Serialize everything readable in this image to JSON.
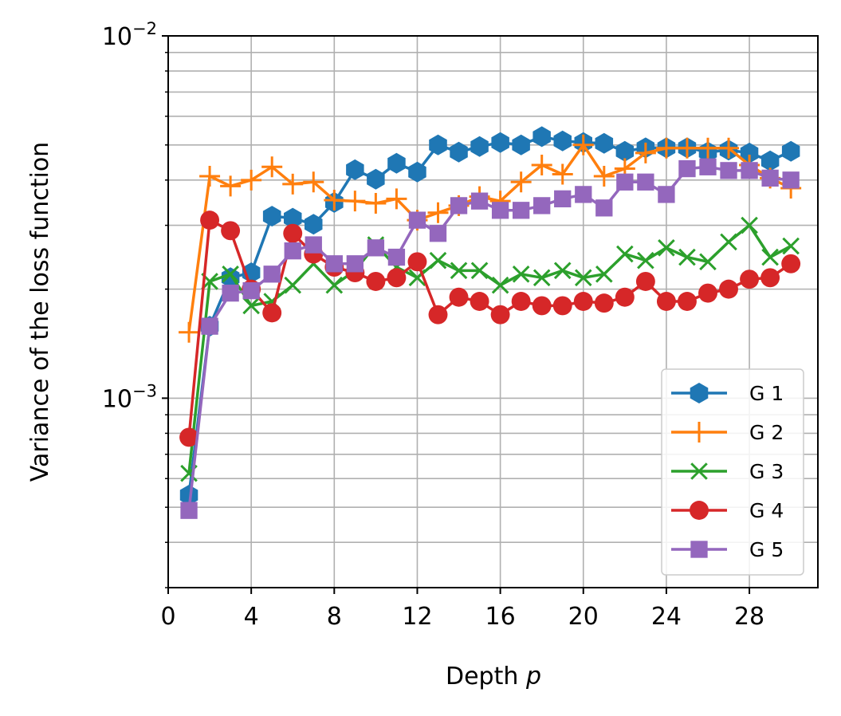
{
  "chart_data": {
    "type": "line",
    "title": "",
    "xlabel": "Depth",
    "xlabel_var": "p",
    "ylabel": "Variance of the loss function",
    "xlim": [
      0,
      31.3
    ],
    "ylim": [
      0.0003,
      0.01
    ],
    "yscale": "log",
    "grid": true,
    "legend_position": "lower-right",
    "x_ticks": [
      0,
      4,
      8,
      12,
      16,
      20,
      24,
      28
    ],
    "y_tick_labels": [
      {
        "value": 0.001,
        "base": "10",
        "exp": "−3"
      },
      {
        "value": 0.01,
        "base": "10",
        "exp": "−2"
      }
    ],
    "x": [
      1,
      2,
      3,
      4,
      5,
      6,
      7,
      8,
      9,
      10,
      11,
      12,
      13,
      14,
      15,
      16,
      17,
      18,
      19,
      20,
      21,
      22,
      23,
      24,
      25,
      26,
      27,
      28,
      29,
      30
    ],
    "series": [
      {
        "name": "G 1",
        "color": "#1f77b4",
        "marker": "hexagon",
        "values": [
          0.00054,
          0.00158,
          0.00215,
          0.00222,
          0.00318,
          0.00314,
          0.00302,
          0.00347,
          0.00427,
          0.00402,
          0.00445,
          0.00421,
          0.005,
          0.00478,
          0.00495,
          0.00508,
          0.005,
          0.00527,
          0.00513,
          0.00508,
          0.00505,
          0.0048,
          0.00491,
          0.00491,
          0.00491,
          0.00478,
          0.00484,
          0.00475,
          0.00452,
          0.0048
        ]
      },
      {
        "name": "G 2",
        "color": "#ff7f0e",
        "marker": "plus",
        "values": [
          0.00152,
          0.0041,
          0.00385,
          0.004,
          0.00435,
          0.0039,
          0.00395,
          0.00352,
          0.0035,
          0.00345,
          0.00355,
          0.0031,
          0.00325,
          0.0034,
          0.0036,
          0.0035,
          0.00395,
          0.0044,
          0.00415,
          0.005,
          0.0041,
          0.0043,
          0.00475,
          0.0049,
          0.0049,
          0.0049,
          0.0049,
          0.0044,
          0.00405,
          0.0038
        ]
      },
      {
        "name": "G 3",
        "color": "#2ca02c",
        "marker": "x",
        "values": [
          0.00062,
          0.0021,
          0.0022,
          0.0018,
          0.00185,
          0.00205,
          0.00235,
          0.00205,
          0.00225,
          0.00265,
          0.0023,
          0.00215,
          0.0024,
          0.00225,
          0.00225,
          0.00205,
          0.0022,
          0.00215,
          0.00225,
          0.00215,
          0.0022,
          0.0025,
          0.0024,
          0.0026,
          0.00245,
          0.00238,
          0.0027,
          0.003,
          0.00245,
          0.00263
        ]
      },
      {
        "name": "G 4",
        "color": "#d62728",
        "marker": "circle",
        "values": [
          0.00078,
          0.0031,
          0.0029,
          0.002,
          0.00172,
          0.00285,
          0.0025,
          0.0023,
          0.00222,
          0.0021,
          0.00215,
          0.00238,
          0.0017,
          0.0019,
          0.00185,
          0.0017,
          0.00185,
          0.0018,
          0.0018,
          0.00185,
          0.00183,
          0.0019,
          0.0021,
          0.00185,
          0.00185,
          0.00195,
          0.002,
          0.00213,
          0.00215,
          0.00235
        ]
      },
      {
        "name": "G 5",
        "color": "#9467bd",
        "marker": "square",
        "values": [
          0.00049,
          0.00158,
          0.00195,
          0.00198,
          0.0022,
          0.00255,
          0.00265,
          0.00235,
          0.00235,
          0.0026,
          0.00245,
          0.0031,
          0.00285,
          0.0034,
          0.0035,
          0.0033,
          0.0033,
          0.0034,
          0.00355,
          0.00365,
          0.00335,
          0.00395,
          0.00395,
          0.00365,
          0.0043,
          0.00435,
          0.00425,
          0.00425,
          0.00405,
          0.004
        ]
      }
    ]
  }
}
